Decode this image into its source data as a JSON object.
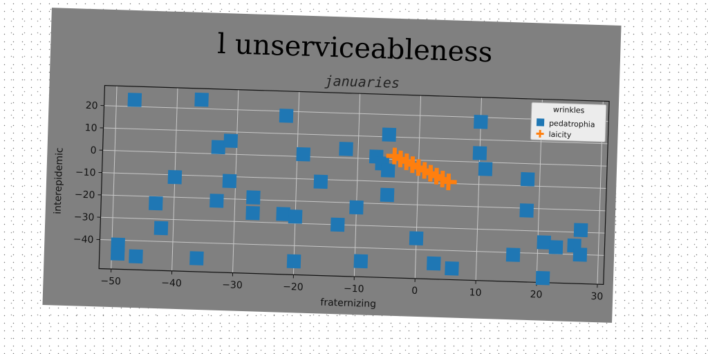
{
  "chart_data": {
    "type": "scatter",
    "title": "l unserviceableness",
    "subtitle": "januaries",
    "xlabel": "fraternizing",
    "ylabel": "interepidemic",
    "xlim": [
      -52,
      31
    ],
    "ylim": [
      -53,
      29
    ],
    "xticks": [
      -50,
      -40,
      -30,
      -20,
      -10,
      0,
      10,
      20,
      30
    ],
    "yticks": [
      -40,
      -30,
      -20,
      -10,
      0,
      10,
      20
    ],
    "grid": true,
    "legend": {
      "title": "wrinkles",
      "placement": "top-right",
      "entries": [
        "pedatrophia",
        "laicity"
      ]
    },
    "colors": {
      "pedatrophia": "#1f77b4",
      "laicity": "#ff7f0e",
      "background": "#808080"
    },
    "series": [
      {
        "name": "pedatrophia",
        "marker": "square",
        "points": [
          [
            -47,
            23
          ],
          [
            -36,
            24
          ],
          [
            -22,
            18
          ],
          [
            -5,
            11
          ],
          [
            10,
            18
          ],
          [
            -33,
            3
          ],
          [
            -31,
            6
          ],
          [
            -19,
            1
          ],
          [
            -12,
            4
          ],
          [
            -7,
            1
          ],
          [
            -6,
            -2
          ],
          [
            -5,
            -5
          ],
          [
            10,
            4
          ],
          [
            11,
            -3
          ],
          [
            18,
            -7
          ],
          [
            -40,
            -11
          ],
          [
            -31,
            -12
          ],
          [
            -16,
            -11
          ],
          [
            -5,
            -16
          ],
          [
            -27,
            -19
          ],
          [
            -43,
            -23
          ],
          [
            -33,
            -21
          ],
          [
            -10,
            -22
          ],
          [
            18,
            -21
          ],
          [
            -27,
            -26
          ],
          [
            -22,
            -26
          ],
          [
            -20,
            -27
          ],
          [
            -13,
            -30
          ],
          [
            27,
            -29
          ],
          [
            -42,
            -34
          ],
          [
            0,
            -35
          ],
          [
            21,
            -35
          ],
          [
            23,
            -37
          ],
          [
            26,
            -36
          ],
          [
            -49,
            -42
          ],
          [
            16,
            -41
          ],
          [
            27,
            -40
          ],
          [
            -49,
            -46
          ],
          [
            -46,
            -47
          ],
          [
            -36,
            -47
          ],
          [
            -20,
            -47
          ],
          [
            -9,
            -46
          ],
          [
            3,
            -46
          ],
          [
            6,
            -48
          ],
          [
            21,
            -51
          ]
        ]
      },
      {
        "name": "laicity",
        "marker": "plus",
        "points": [
          [
            -4,
            1.5
          ],
          [
            -3,
            0.3
          ],
          [
            -2,
            -0.9
          ],
          [
            -1,
            -2.1
          ],
          [
            0,
            -3.3
          ],
          [
            1,
            -4.5
          ],
          [
            2,
            -5.7
          ],
          [
            3,
            -6.9
          ],
          [
            4,
            -8.1
          ],
          [
            5,
            -9.3
          ]
        ]
      }
    ]
  }
}
